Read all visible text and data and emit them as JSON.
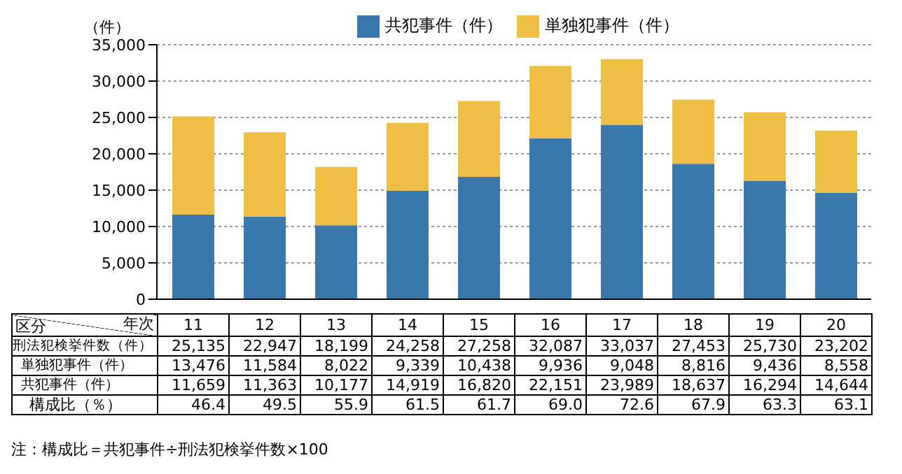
{
  "chart_data": {
    "type": "bar",
    "stacked": true,
    "ylabel": "（件）",
    "categories": [
      "11",
      "12",
      "13",
      "14",
      "15",
      "16",
      "17",
      "18",
      "19",
      "20"
    ],
    "series": [
      {
        "name": "共犯事件（件）",
        "color": "#3a78ac",
        "values": [
          11659,
          11363,
          10177,
          14919,
          16820,
          22151,
          23989,
          18637,
          16294,
          14644
        ],
        "value_labels": [
          "11,659",
          "11,363",
          "10,177",
          "14,919",
          "16,820",
          "22,151",
          "23,989",
          "18,637",
          "16,294",
          "14,644"
        ]
      },
      {
        "name": "単独犯事件（件）",
        "color": "#efbf45",
        "values": [
          13476,
          11584,
          8022,
          9339,
          10438,
          9936,
          9048,
          8816,
          9436,
          8558
        ],
        "value_labels": [
          "13,476",
          "11,584",
          "8,022",
          "9,339",
          "10,438",
          "9,936",
          "9,048",
          "8,816",
          "9,436",
          "8,558"
        ]
      }
    ],
    "ylim": [
      0,
      35000
    ],
    "yticks": [
      {
        "value": 0,
        "label": "0"
      },
      {
        "value": 5000,
        "label": "5,000"
      },
      {
        "value": 10000,
        "label": "10,000"
      },
      {
        "value": 15000,
        "label": "15,000"
      },
      {
        "value": 20000,
        "label": "20,000"
      },
      {
        "value": 25000,
        "label": "25,000"
      },
      {
        "value": 30000,
        "label": "30,000"
      },
      {
        "value": 35000,
        "label": "35,000"
      }
    ],
    "grid": "y",
    "legend": "top",
    "totals": [
      "25,135",
      "22,947",
      "18,199",
      "24,258",
      "27,258",
      "32,087",
      "33,037",
      "27,453",
      "25,730",
      "23,202"
    ],
    "annotations": [
      "区分",
      "年次",
      "刑法犯検挙件数（件）",
      "構成比（％）",
      "46.4",
      "49.5",
      "55.9",
      "61.5",
      "61.7",
      "69.0",
      "72.6",
      "67.9",
      "63.3",
      "63.1",
      "注：構成比＝共犯事件÷刑法犯検挙件数×100"
    ]
  }
}
